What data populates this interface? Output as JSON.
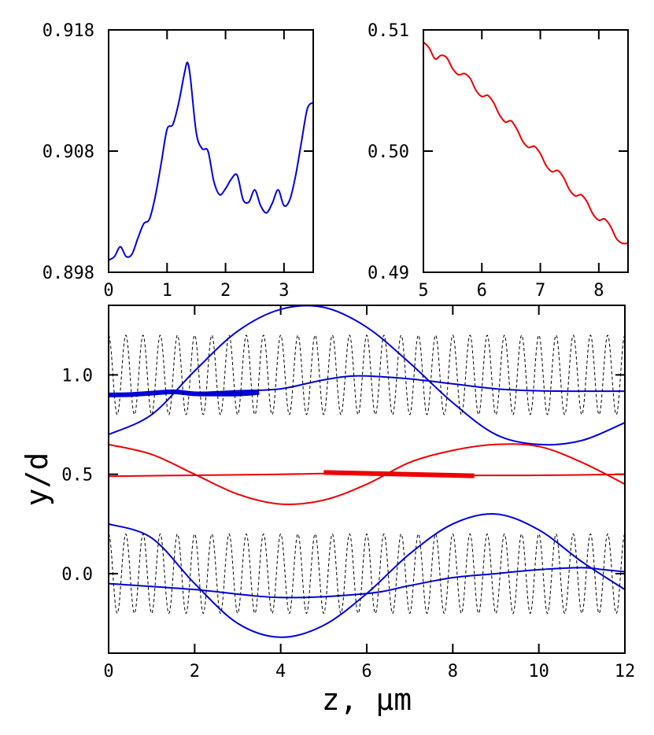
{
  "colors": {
    "blue": "#0000dd",
    "red": "#ee0000",
    "black": "#000000"
  },
  "chart_data": [
    {
      "id": "inset-left",
      "type": "line",
      "xlim": [
        0,
        3.5
      ],
      "ylim": [
        0.898,
        0.918
      ],
      "x_ticks": [
        "0",
        "1",
        "2",
        "3"
      ],
      "y_ticks": [
        "0.898",
        "0.908",
        "0.918"
      ],
      "series": [
        {
          "color": "blue",
          "x": [
            0,
            0.1,
            0.2,
            0.3,
            0.4,
            0.5,
            0.6,
            0.7,
            0.8,
            0.9,
            1.0,
            1.1,
            1.2,
            1.3,
            1.35,
            1.4,
            1.5,
            1.6,
            1.7,
            1.8,
            1.9,
            2.0,
            2.1,
            2.2,
            2.3,
            2.4,
            2.5,
            2.6,
            2.7,
            2.8,
            2.9,
            3.0,
            3.1,
            3.2,
            3.3,
            3.4,
            3.5
          ],
          "y": [
            0.899,
            0.8993,
            0.9001,
            0.8993,
            0.8995,
            0.9008,
            0.902,
            0.9024,
            0.9043,
            0.907,
            0.9098,
            0.9102,
            0.912,
            0.9145,
            0.9153,
            0.914,
            0.9095,
            0.9082,
            0.908,
            0.9055,
            0.9044,
            0.9049,
            0.9057,
            0.906,
            0.904,
            0.9038,
            0.9048,
            0.9035,
            0.9029,
            0.9037,
            0.9048,
            0.9035,
            0.904,
            0.906,
            0.9088,
            0.9115,
            0.912
          ]
        }
      ]
    },
    {
      "id": "inset-right",
      "type": "line",
      "xlim": [
        5,
        8.5
      ],
      "ylim": [
        0.49,
        0.51
      ],
      "x_ticks": [
        "5",
        "6",
        "7",
        "8"
      ],
      "y_ticks": [
        "0.49",
        "0.50",
        "0.51"
      ],
      "series": [
        {
          "color": "red",
          "x": [
            5.0,
            5.1,
            5.2,
            5.3,
            5.4,
            5.5,
            5.6,
            5.7,
            5.8,
            5.9,
            6.0,
            6.1,
            6.2,
            6.3,
            6.4,
            6.5,
            6.6,
            6.7,
            6.8,
            6.9,
            7.0,
            7.1,
            7.2,
            7.3,
            7.4,
            7.5,
            7.6,
            7.7,
            7.8,
            7.9,
            8.0,
            8.1,
            8.2,
            8.3,
            8.4,
            8.5
          ],
          "y": [
            0.509,
            0.5085,
            0.5076,
            0.5079,
            0.5077,
            0.5068,
            0.5063,
            0.5064,
            0.506,
            0.505,
            0.5045,
            0.5046,
            0.504,
            0.503,
            0.5024,
            0.5025,
            0.5018,
            0.5008,
            0.5003,
            0.5004,
            0.4998,
            0.4988,
            0.4983,
            0.4984,
            0.4978,
            0.4968,
            0.4963,
            0.4964,
            0.4958,
            0.4948,
            0.4943,
            0.4944,
            0.4938,
            0.4928,
            0.4924,
            0.4924
          ]
        }
      ]
    },
    {
      "id": "main",
      "type": "line",
      "xlim": [
        0,
        12
      ],
      "ylim": [
        -0.4,
        1.35
      ],
      "xlabel": "z, μm",
      "ylabel": "y/d",
      "x_ticks": [
        "0",
        "2",
        "4",
        "6",
        "8",
        "10",
        "12"
      ],
      "y_ticks": [
        "0.0",
        "0.5",
        "1.0"
      ],
      "series": [
        {
          "color": "blue",
          "width": 2,
          "x": [
            0,
            1,
            2,
            3,
            4,
            5,
            6,
            7,
            8,
            9,
            10,
            11,
            12
          ],
          "y": [
            0.7,
            0.8,
            1.02,
            1.22,
            1.33,
            1.34,
            1.24,
            1.06,
            0.86,
            0.7,
            0.65,
            0.67,
            0.76
          ]
        },
        {
          "color": "blue",
          "width": 2,
          "x": [
            0,
            1,
            2,
            3,
            4,
            5,
            5.8,
            7,
            8,
            9,
            10,
            11,
            12
          ],
          "y": [
            0.9,
            0.905,
            0.91,
            0.92,
            0.93,
            0.975,
            0.995,
            0.98,
            0.955,
            0.93,
            0.92,
            0.918,
            0.918
          ]
        },
        {
          "color": "red",
          "width": 2,
          "x": [
            0,
            1,
            2,
            3,
            4,
            5,
            6,
            7,
            8,
            9,
            10,
            11,
            12
          ],
          "y": [
            0.65,
            0.6,
            0.5,
            0.4,
            0.35,
            0.37,
            0.45,
            0.56,
            0.62,
            0.65,
            0.64,
            0.56,
            0.45
          ]
        },
        {
          "color": "red",
          "width": 2,
          "x": [
            0,
            2,
            4,
            6,
            8,
            10,
            12
          ],
          "y": [
            0.49,
            0.495,
            0.5,
            0.505,
            0.495,
            0.495,
            0.5
          ]
        },
        {
          "color": "blue",
          "width": 2,
          "x": [
            0,
            1,
            2,
            3,
            4,
            5,
            6,
            7,
            8,
            9,
            10,
            11,
            12
          ],
          "y": [
            0.25,
            0.18,
            -0.05,
            -0.25,
            -0.32,
            -0.26,
            -0.1,
            0.1,
            0.25,
            0.3,
            0.22,
            0.06,
            -0.08
          ]
        },
        {
          "color": "blue",
          "width": 2,
          "x": [
            0,
            2,
            4,
            6,
            7,
            8,
            9,
            10,
            11,
            11.5,
            12
          ],
          "y": [
            -0.05,
            -0.08,
            -0.12,
            -0.1,
            -0.06,
            -0.02,
            0.0,
            0.02,
            0.03,
            0.02,
            0.01
          ]
        },
        {
          "color": "blue",
          "width": 6,
          "x": [
            0,
            0.5,
            1.0,
            1.5,
            2.0,
            2.5,
            3.0,
            3.5
          ],
          "y": [
            0.899,
            0.901,
            0.908,
            0.915,
            0.905,
            0.904,
            0.904,
            0.912
          ]
        },
        {
          "color": "red",
          "width": 6,
          "x": [
            5.0,
            8.5
          ],
          "y": [
            0.509,
            0.4925
          ]
        },
        {
          "color": "black",
          "width": 1,
          "dashed": true,
          "kind": "sine",
          "x_range": [
            0,
            12
          ],
          "center": 1.0,
          "amplitude": 0.2,
          "period": 0.4
        },
        {
          "color": "black",
          "width": 1,
          "dashed": true,
          "kind": "sine",
          "x_range": [
            0,
            12
          ],
          "center": 0.0,
          "amplitude": 0.2,
          "period": 0.4
        }
      ]
    }
  ]
}
